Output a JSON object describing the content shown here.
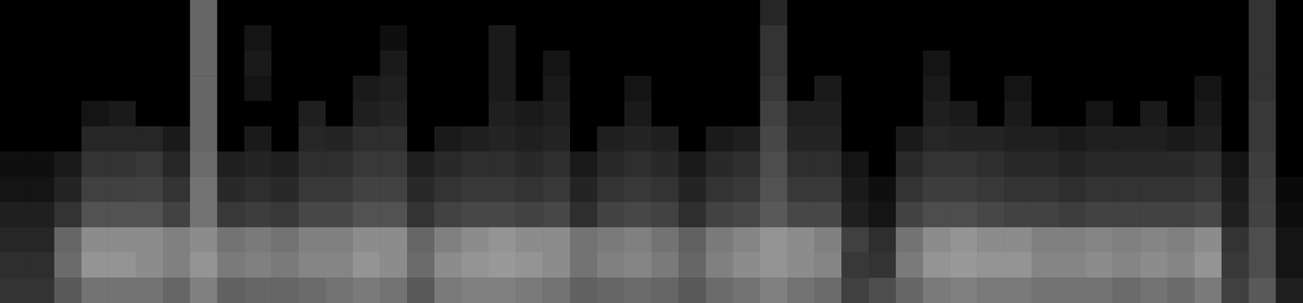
{
  "chart_data": {
    "type": "heatmap",
    "tick_labels": false,
    "color": "#ffffff",
    "zlim": [
      0,
      100
    ],
    "cells": [
      [
        0,
        0,
        0,
        0,
        0,
        0,
        0,
        40,
        0,
        0,
        0,
        0,
        0,
        0,
        0,
        0,
        0,
        0,
        0,
        0,
        0,
        0,
        0,
        0,
        0,
        0,
        0,
        0,
        15,
        0,
        0,
        0,
        0,
        0,
        0,
        0,
        0,
        0,
        0,
        0,
        0,
        0,
        0,
        0,
        0,
        0,
        20,
        0
      ],
      [
        0,
        0,
        0,
        0,
        0,
        0,
        0,
        40,
        0,
        8,
        0,
        0,
        0,
        0,
        6,
        0,
        0,
        0,
        10,
        0,
        0,
        0,
        0,
        0,
        0,
        0,
        0,
        0,
        20,
        0,
        0,
        0,
        0,
        0,
        0,
        0,
        0,
        0,
        0,
        0,
        0,
        0,
        0,
        0,
        0,
        0,
        20,
        0
      ],
      [
        0,
        0,
        0,
        0,
        0,
        0,
        0,
        40,
        0,
        10,
        0,
        0,
        0,
        0,
        10,
        0,
        0,
        0,
        10,
        0,
        8,
        0,
        0,
        0,
        0,
        0,
        0,
        0,
        20,
        0,
        0,
        0,
        0,
        0,
        8,
        0,
        0,
        0,
        0,
        0,
        0,
        0,
        0,
        0,
        0,
        0,
        20,
        0
      ],
      [
        0,
        0,
        0,
        0,
        0,
        0,
        0,
        40,
        0,
        8,
        0,
        0,
        0,
        10,
        12,
        0,
        0,
        0,
        10,
        0,
        10,
        0,
        0,
        8,
        0,
        0,
        0,
        0,
        22,
        0,
        10,
        0,
        0,
        0,
        10,
        0,
        0,
        8,
        0,
        0,
        0,
        0,
        0,
        0,
        8,
        0,
        20,
        0
      ],
      [
        0,
        0,
        0,
        8,
        10,
        0,
        0,
        40,
        0,
        0,
        0,
        12,
        0,
        12,
        14,
        0,
        0,
        0,
        12,
        10,
        12,
        0,
        0,
        10,
        0,
        0,
        0,
        0,
        25,
        12,
        12,
        0,
        0,
        0,
        12,
        10,
        0,
        10,
        0,
        0,
        8,
        0,
        10,
        0,
        10,
        0,
        22,
        0
      ],
      [
        0,
        0,
        0,
        15,
        15,
        15,
        10,
        40,
        0,
        10,
        0,
        15,
        14,
        18,
        18,
        0,
        10,
        12,
        14,
        12,
        14,
        0,
        12,
        14,
        12,
        0,
        10,
        12,
        28,
        14,
        14,
        0,
        0,
        10,
        15,
        14,
        14,
        12,
        12,
        10,
        12,
        12,
        12,
        10,
        12,
        0,
        22,
        0
      ],
      [
        6,
        6,
        10,
        20,
        20,
        22,
        15,
        42,
        12,
        14,
        12,
        18,
        18,
        22,
        22,
        12,
        16,
        18,
        18,
        16,
        18,
        10,
        16,
        18,
        16,
        10,
        16,
        18,
        30,
        18,
        18,
        8,
        0,
        16,
        20,
        20,
        18,
        16,
        16,
        14,
        16,
        16,
        16,
        16,
        18,
        8,
        24,
        0
      ],
      [
        8,
        8,
        14,
        25,
        25,
        26,
        20,
        45,
        16,
        18,
        16,
        22,
        22,
        26,
        26,
        16,
        20,
        22,
        22,
        20,
        22,
        14,
        20,
        22,
        20,
        14,
        20,
        22,
        32,
        22,
        22,
        10,
        6,
        20,
        24,
        24,
        22,
        20,
        20,
        18,
        20,
        20,
        20,
        20,
        22,
        10,
        25,
        4
      ],
      [
        12,
        12,
        20,
        32,
        32,
        32,
        26,
        45,
        22,
        24,
        22,
        28,
        28,
        32,
        32,
        20,
        26,
        28,
        28,
        26,
        28,
        18,
        26,
        28,
        26,
        18,
        26,
        28,
        35,
        28,
        28,
        12,
        8,
        26,
        30,
        30,
        28,
        26,
        26,
        24,
        26,
        26,
        26,
        26,
        28,
        12,
        26,
        5
      ],
      [
        15,
        15,
        40,
        55,
        55,
        55,
        50,
        55,
        45,
        48,
        45,
        50,
        50,
        55,
        55,
        40,
        50,
        55,
        58,
        55,
        55,
        45,
        48,
        50,
        45,
        38,
        48,
        52,
        58,
        55,
        50,
        25,
        18,
        45,
        55,
        58,
        55,
        55,
        50,
        50,
        52,
        50,
        52,
        50,
        55,
        20,
        30,
        8
      ],
      [
        18,
        18,
        42,
        58,
        58,
        55,
        50,
        58,
        48,
        50,
        48,
        52,
        52,
        58,
        55,
        42,
        55,
        58,
        60,
        58,
        55,
        45,
        50,
        52,
        48,
        40,
        50,
        55,
        58,
        55,
        52,
        22,
        20,
        48,
        58,
        60,
        58,
        58,
        52,
        52,
        55,
        52,
        55,
        52,
        58,
        22,
        30,
        8
      ],
      [
        20,
        20,
        35,
        45,
        45,
        45,
        40,
        50,
        38,
        40,
        40,
        42,
        45,
        48,
        45,
        35,
        48,
        50,
        50,
        48,
        45,
        38,
        40,
        42,
        40,
        35,
        42,
        45,
        50,
        45,
        42,
        25,
        30,
        40,
        48,
        50,
        48,
        48,
        45,
        45,
        45,
        42,
        45,
        42,
        48,
        25,
        35,
        12
      ]
    ]
  }
}
